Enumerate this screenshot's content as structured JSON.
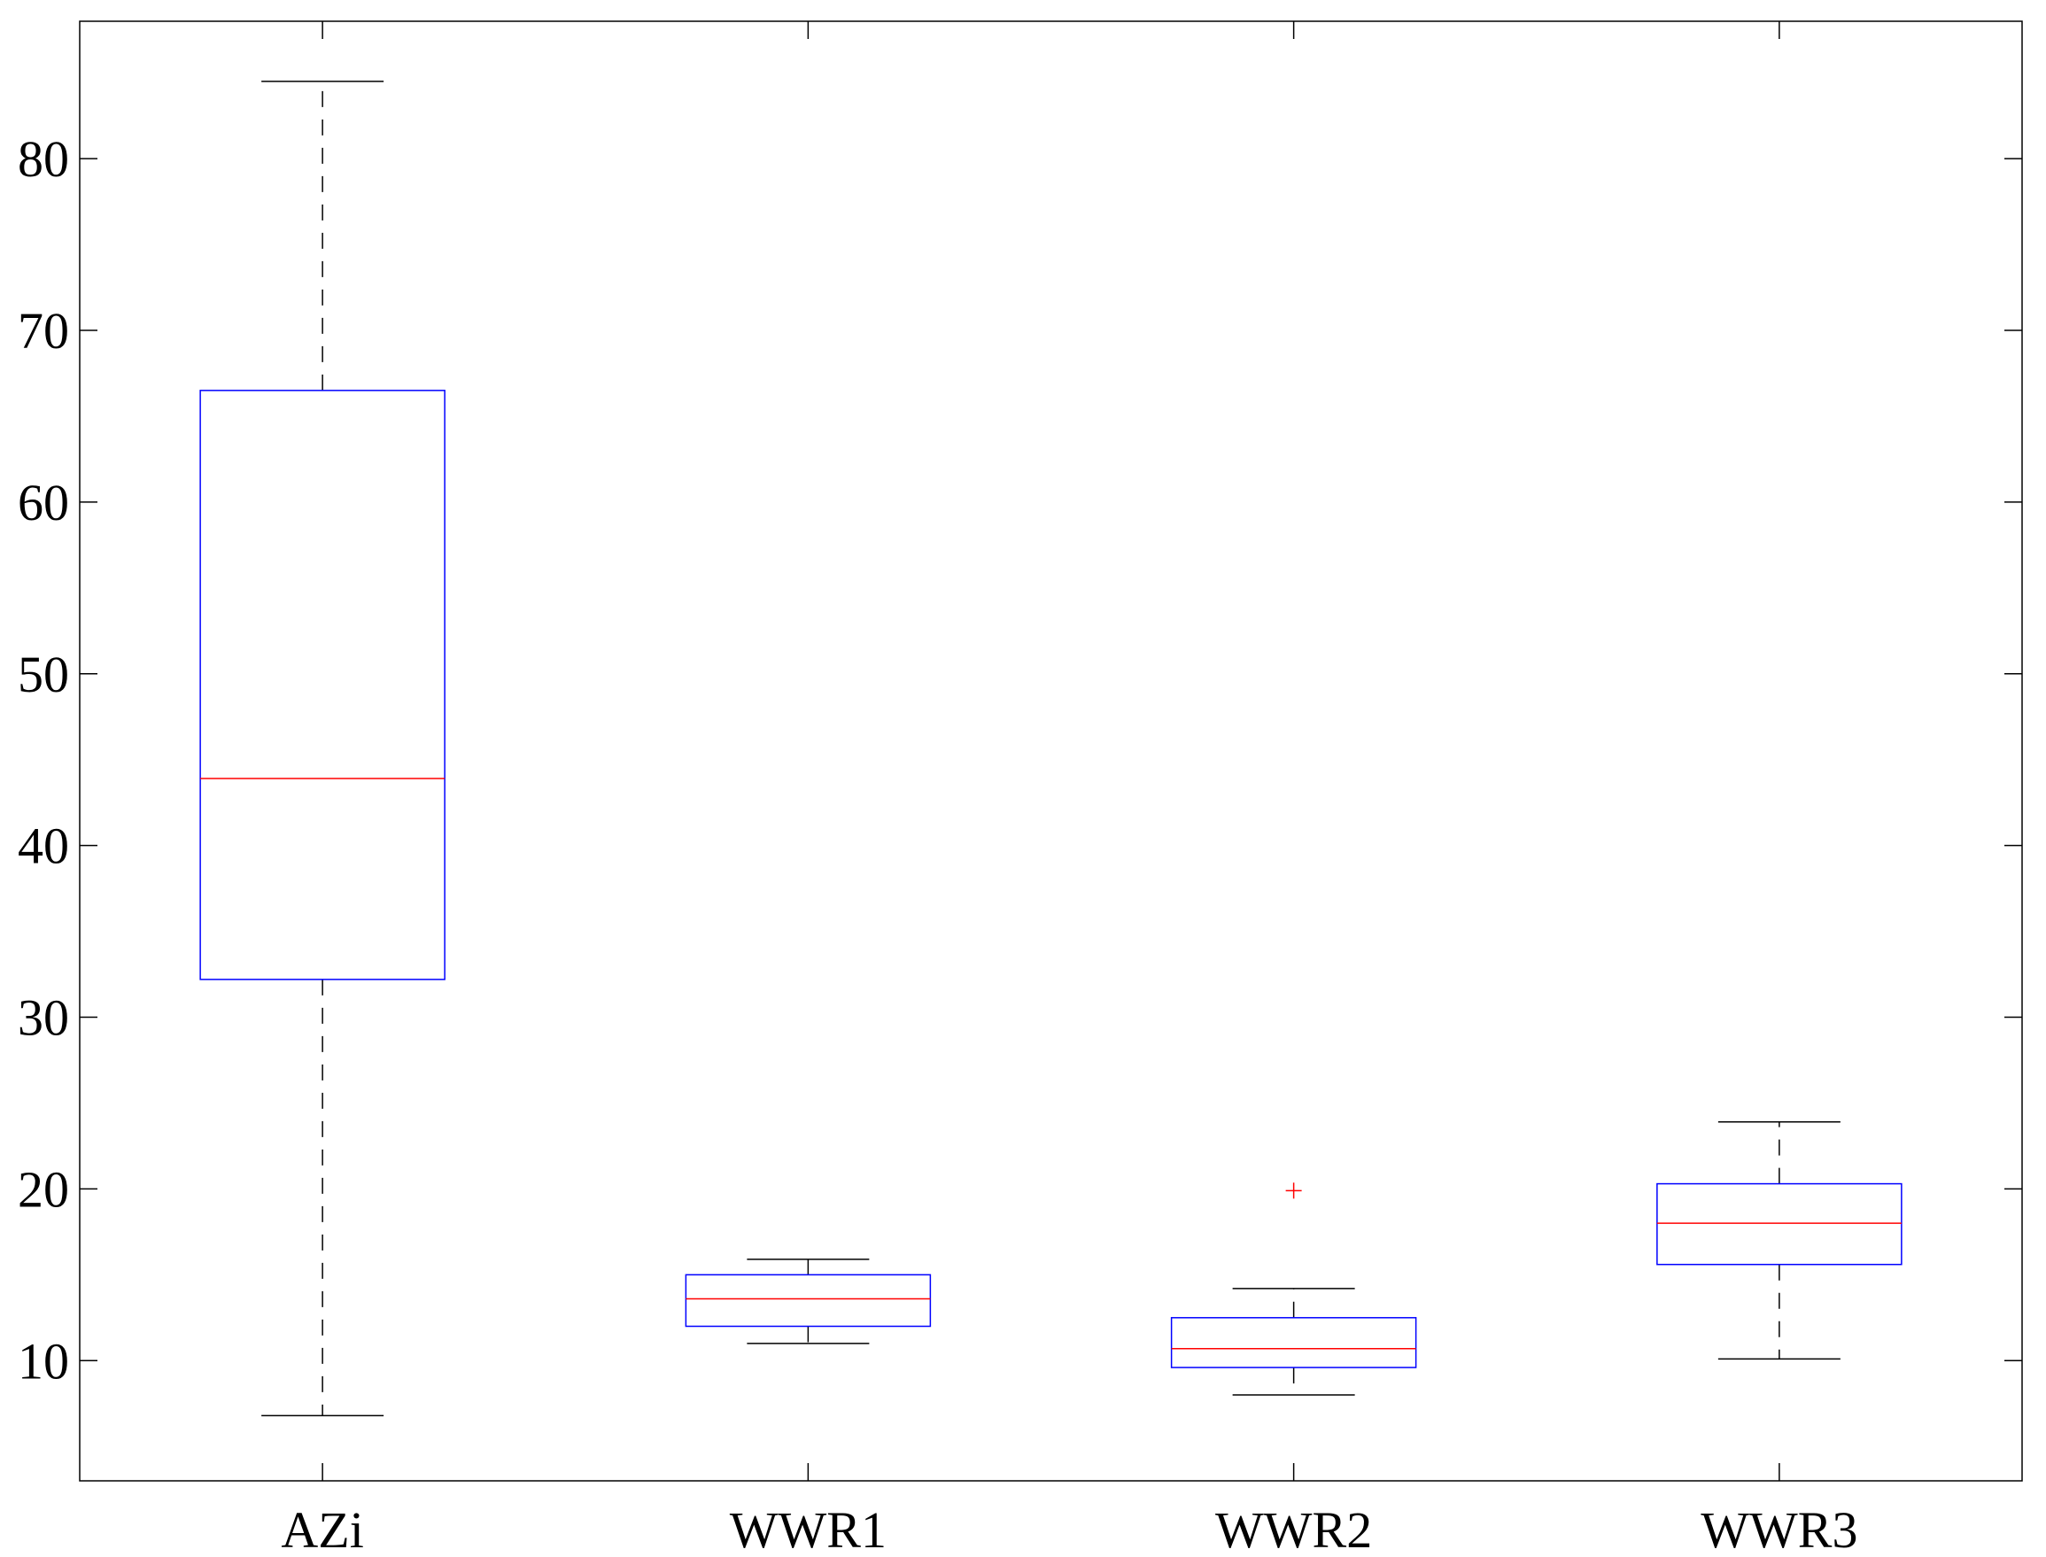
{
  "chart_data": {
    "type": "boxplot",
    "title": "",
    "xlabel": "",
    "ylabel": "",
    "ylim": [
      3,
      88
    ],
    "y_ticks": [
      10,
      20,
      30,
      40,
      50,
      60,
      70,
      80
    ],
    "grid": false,
    "categories": [
      "AZi",
      "WWR1",
      "WWR2",
      "WWR3"
    ],
    "boxes": [
      {
        "label": "AZi",
        "whisker_low": 6.8,
        "q1": 32.2,
        "median": 43.9,
        "q3": 66.5,
        "whisker_high": 84.5,
        "outliers": []
      },
      {
        "label": "WWR1",
        "whisker_low": 11.0,
        "q1": 12.0,
        "median": 13.6,
        "q3": 15.0,
        "whisker_high": 15.9,
        "outliers": []
      },
      {
        "label": "WWR2",
        "whisker_low": 8.0,
        "q1": 9.6,
        "median": 10.7,
        "q3": 12.5,
        "whisker_high": 14.2,
        "outliers": [
          19.9
        ]
      },
      {
        "label": "WWR3",
        "whisker_low": 10.1,
        "q1": 15.6,
        "median": 18.0,
        "q3": 20.3,
        "whisker_high": 23.9,
        "outliers": []
      }
    ],
    "colors": {
      "box": "#0000ff",
      "median": "#ff0000",
      "whisker": "#000000",
      "outlier": "#ff0000",
      "axes": "#000000"
    }
  }
}
